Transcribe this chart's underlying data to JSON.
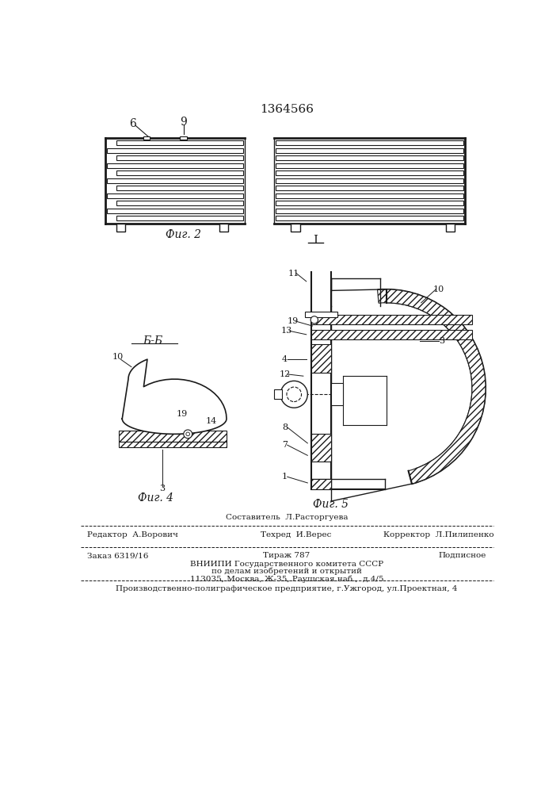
{
  "patent_number": "1364566",
  "bg_color": "#ffffff",
  "fig_width": 7.07,
  "fig_height": 10.0,
  "text_color": "#1a1a1a",
  "line_color": "#1a1a1a",
  "footer": {
    "sestavitel": "Составитель  Л.Расторгуева",
    "redaktor": "Редактор  А.Ворович",
    "tehred": "Техред  И.Верес",
    "korrektor": "Корректор  Л.Пилипенко",
    "zakaz": "Заказ 6319/16",
    "tirazh": "Тираж 787",
    "podpisnoe": "Подписное",
    "vnipi": "ВНИИПИ Государственного комитета СССР",
    "po_delam": "по делам изобретений и открытий",
    "address": "113035, Москва, Ж-35, Раушская наб.,  д.4/5",
    "tipografiya": "Производственно-полиграфическое предприятие, г.Ужгород, ул.Проектная, 4"
  }
}
